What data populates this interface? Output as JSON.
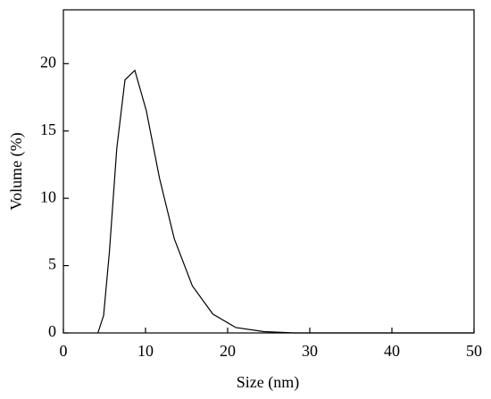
{
  "chart_data": {
    "type": "line",
    "x_label": "Size (nm)",
    "y_label": "Volume (%)",
    "series": [
      {
        "name": "Volume",
        "color": "#000000",
        "x": [
          4.2,
          4.9,
          5.6,
          6.5,
          7.5,
          8.7,
          10.1,
          11.7,
          13.5,
          15.7,
          18.2,
          21.0,
          24.4,
          28.2,
          50
        ],
        "values": [
          0,
          1.3,
          6,
          13.7,
          18.8,
          19.5,
          16.5,
          11.5,
          7,
          3.5,
          1.4,
          0.4,
          0.1,
          0,
          0
        ]
      }
    ],
    "xlim": [
      0,
      50
    ],
    "xticks": [
      0,
      10,
      20,
      30,
      40,
      50
    ],
    "ylim": [
      0,
      24
    ],
    "yticks": [
      0,
      5,
      10,
      15,
      20
    ]
  }
}
